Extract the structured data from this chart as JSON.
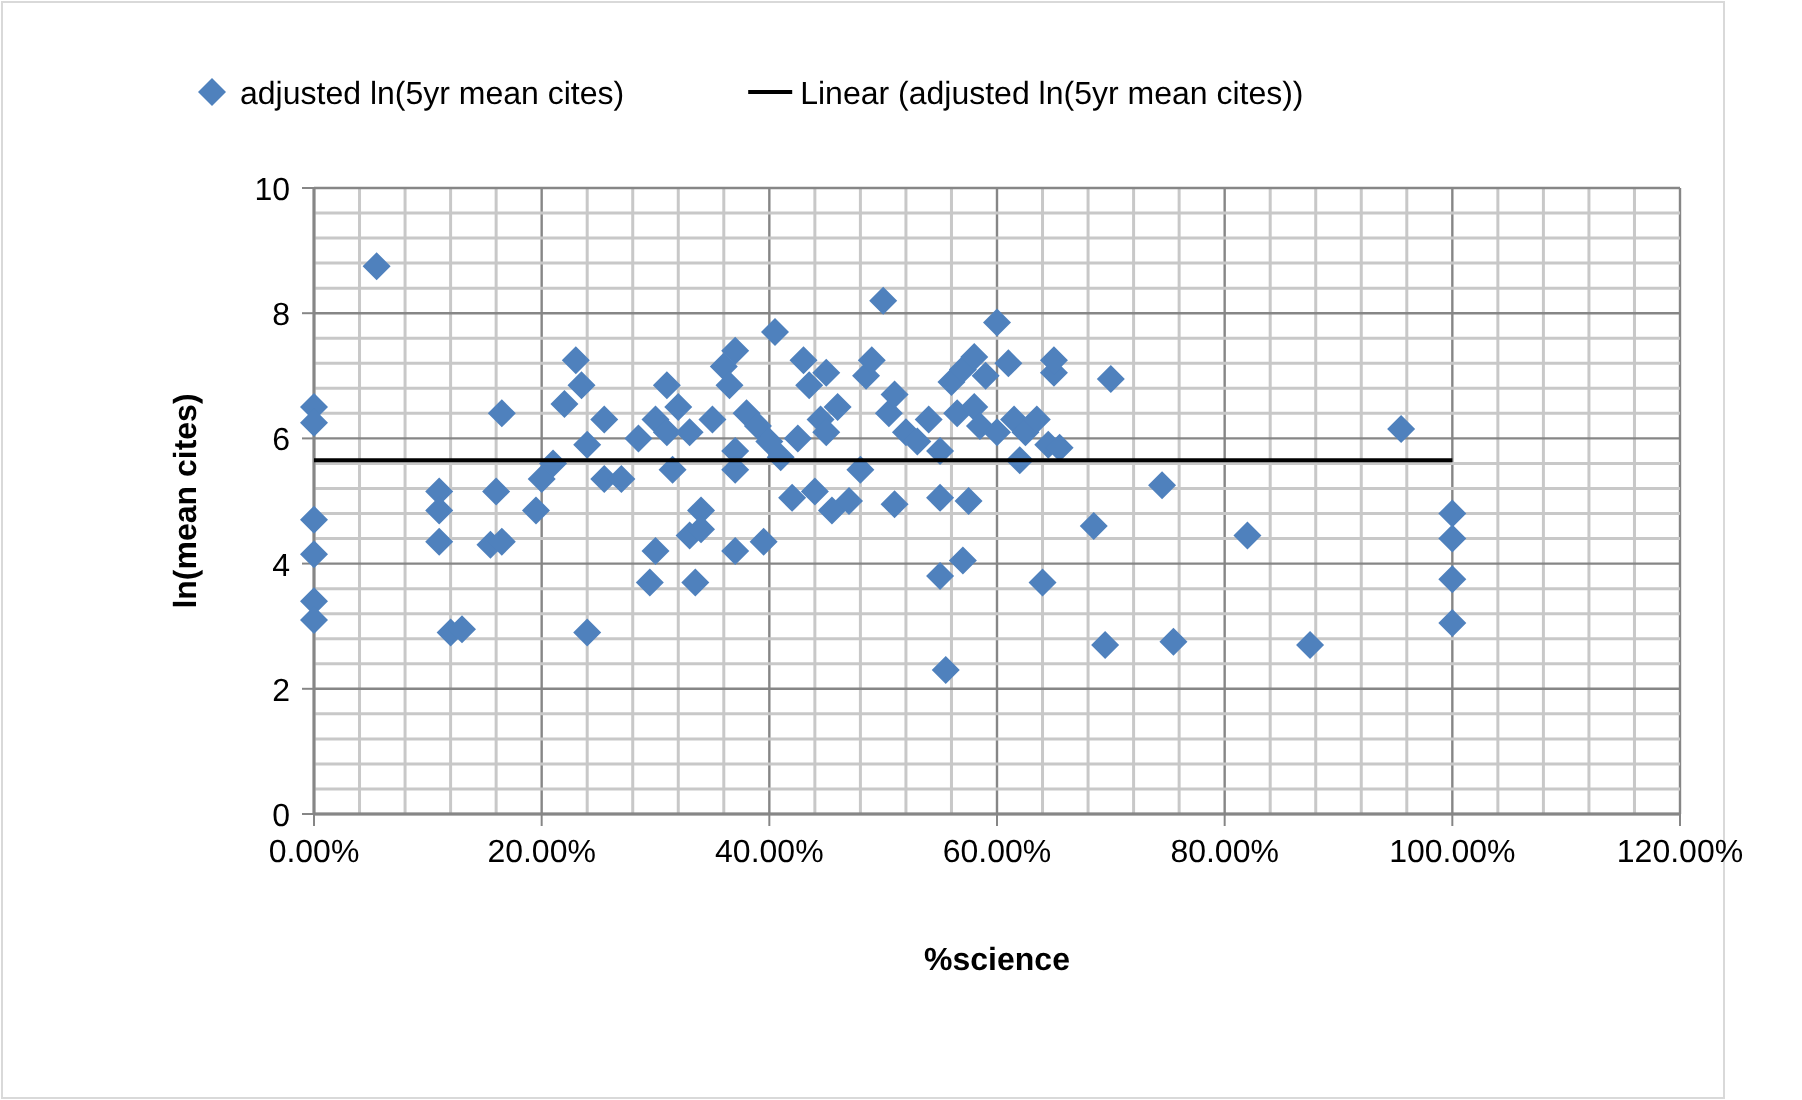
{
  "chart_data": {
    "type": "scatter",
    "xlabel": "%science",
    "ylabel": "ln(mean cites)",
    "legend": "top",
    "grid": true,
    "xlim": [
      0,
      1.2
    ],
    "ylim": [
      0,
      10
    ],
    "xticks": [
      {
        "value": 0,
        "label": "0.00%"
      },
      {
        "value": 0.04,
        "label": null
      },
      {
        "value": 0.08,
        "label": null
      },
      {
        "value": 0.12,
        "label": null
      },
      {
        "value": 0.16,
        "label": null
      },
      {
        "value": 0.2,
        "label": "20.00%"
      },
      {
        "value": 0.24,
        "label": null
      },
      {
        "value": 0.28,
        "label": null
      },
      {
        "value": 0.32,
        "label": null
      },
      {
        "value": 0.36,
        "label": null
      },
      {
        "value": 0.4,
        "label": "40.00%"
      },
      {
        "value": 0.44,
        "label": null
      },
      {
        "value": 0.48,
        "label": null
      },
      {
        "value": 0.52,
        "label": null
      },
      {
        "value": 0.56,
        "label": null
      },
      {
        "value": 0.6,
        "label": "60.00%"
      },
      {
        "value": 0.64,
        "label": null
      },
      {
        "value": 0.68,
        "label": null
      },
      {
        "value": 0.72,
        "label": null
      },
      {
        "value": 0.76,
        "label": null
      },
      {
        "value": 0.8,
        "label": "80.00%"
      },
      {
        "value": 0.84,
        "label": null
      },
      {
        "value": 0.88,
        "label": null
      },
      {
        "value": 0.92,
        "label": null
      },
      {
        "value": 0.96,
        "label": null
      },
      {
        "value": 1,
        "label": "100.00%"
      },
      {
        "value": 1.04,
        "label": null
      },
      {
        "value": 1.08,
        "label": null
      },
      {
        "value": 1.12,
        "label": null
      },
      {
        "value": 1.16,
        "label": null
      },
      {
        "value": 1.2,
        "label": "120.00%"
      }
    ],
    "yticks": [
      0,
      {
        "value": 0.4,
        "label": null
      },
      {
        "value": 0.8,
        "label": null
      },
      {
        "value": 1.2,
        "label": null
      },
      {
        "value": 1.6,
        "label": null
      },
      2,
      {
        "value": 2.4,
        "label": null
      },
      {
        "value": 2.8,
        "label": null
      },
      {
        "value": 3.2,
        "label": null
      },
      {
        "value": 3.6,
        "label": null
      },
      4,
      {
        "value": 4.4,
        "label": null
      },
      {
        "value": 4.8,
        "label": null
      },
      {
        "value": 5.2,
        "label": null
      },
      {
        "value": 5.6,
        "label": null
      },
      6,
      {
        "value": 6.4,
        "label": null
      },
      {
        "value": 6.8,
        "label": null
      },
      {
        "value": 7.2,
        "label": null
      },
      {
        "value": 7.6,
        "label": null
      },
      8,
      {
        "value": 8.4,
        "label": null
      },
      {
        "value": 8.8,
        "label": null
      },
      {
        "value": 9.2,
        "label": null
      },
      {
        "value": 9.6,
        "label": null
      },
      10
    ],
    "series": [
      {
        "name": "adjusted ln(5yr mean cites)",
        "color": "#4f81bd",
        "marker": "diamond",
        "x": [
          0,
          0,
          0,
          0,
          0,
          0,
          0.055,
          0.11,
          0.11,
          0.11,
          0.12,
          0.13,
          0.155,
          0.16,
          0.165,
          0.165,
          0.195,
          0.2,
          0.21,
          0.22,
          0.23,
          0.235,
          0.24,
          0.24,
          0.255,
          0.255,
          0.27,
          0.285,
          0.295,
          0.3,
          0.3,
          0.31,
          0.31,
          0.315,
          0.32,
          0.33,
          0.33,
          0.335,
          0.34,
          0.34,
          0.35,
          0.36,
          0.365,
          0.37,
          0.37,
          0.37,
          0.37,
          0.38,
          0.39,
          0.395,
          0.4,
          0.405,
          0.41,
          0.42,
          0.425,
          0.43,
          0.435,
          0.44,
          0.445,
          0.45,
          0.45,
          0.455,
          0.46,
          0.47,
          0.48,
          0.485,
          0.49,
          0.5,
          0.505,
          0.51,
          0.51,
          0.52,
          0.53,
          0.54,
          0.55,
          0.55,
          0.55,
          0.555,
          0.56,
          0.565,
          0.57,
          0.57,
          0.575,
          0.58,
          0.58,
          0.585,
          0.59,
          0.6,
          0.6,
          0.61,
          0.615,
          0.62,
          0.625,
          0.635,
          0.64,
          0.645,
          0.65,
          0.65,
          0.655,
          0.685,
          0.695,
          0.7,
          0.745,
          0.755,
          0.82,
          0.875,
          0.955,
          1,
          1,
          1,
          1
        ],
        "values": [
          6.5,
          6.25,
          4.7,
          4.15,
          3.4,
          3.1,
          8.75,
          5.15,
          4.85,
          4.35,
          2.9,
          2.95,
          4.3,
          5.15,
          4.35,
          6.4,
          4.85,
          5.35,
          5.6,
          6.55,
          7.25,
          6.85,
          2.9,
          5.9,
          6.3,
          5.35,
          5.35,
          6.0,
          3.7,
          4.2,
          6.3,
          6.85,
          6.1,
          5.5,
          6.5,
          6.1,
          4.45,
          3.7,
          4.85,
          4.55,
          6.3,
          7.15,
          6.85,
          7.4,
          5.8,
          5.5,
          4.2,
          6.4,
          6.2,
          4.35,
          5.95,
          7.7,
          5.7,
          5.05,
          6.0,
          7.25,
          6.85,
          5.15,
          6.3,
          7.05,
          6.1,
          4.85,
          6.5,
          5.0,
          5.5,
          7.0,
          7.25,
          8.2,
          6.4,
          6.7,
          4.95,
          6.1,
          5.95,
          6.3,
          5.8,
          5.05,
          3.8,
          2.3,
          6.9,
          6.4,
          7.1,
          4.05,
          5.0,
          7.3,
          6.5,
          6.2,
          7.0,
          6.1,
          7.85,
          7.2,
          6.3,
          5.65,
          6.1,
          6.3,
          3.7,
          5.9,
          7.05,
          7.25,
          5.85,
          4.6,
          2.7,
          6.95,
          5.25,
          2.75,
          4.45,
          2.7,
          6.15,
          4.8,
          4.4,
          3.75,
          3.05
        ]
      },
      {
        "name": "Linear (adjusted ln(5yr mean cites))",
        "color": "#000000",
        "type": "line",
        "x": [
          0,
          1
        ],
        "values": [
          5.65,
          5.65
        ]
      }
    ]
  }
}
